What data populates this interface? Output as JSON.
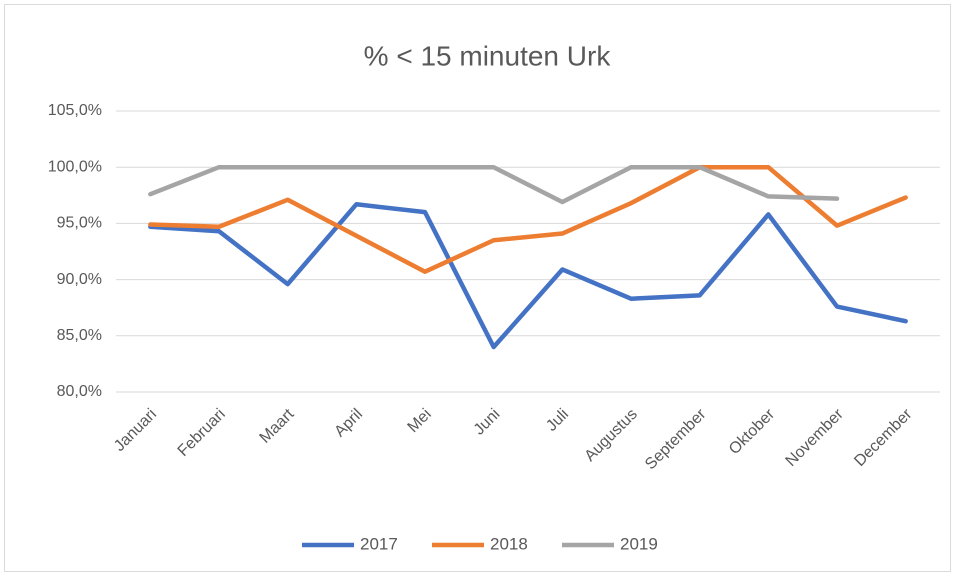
{
  "chart_data": {
    "type": "line",
    "title": "% < 15 minuten Urk",
    "categories": [
      "Januari",
      "Februari",
      "Maart",
      "April",
      "Mei",
      "Juni",
      "Juli",
      "Augustus",
      "September",
      "Oktober",
      "November",
      "December"
    ],
    "series": [
      {
        "name": "2017",
        "color": "#4472c4",
        "values": [
          94.7,
          94.3,
          89.6,
          96.7,
          96.0,
          84.0,
          90.9,
          88.3,
          88.6,
          95.8,
          87.6,
          86.3
        ]
      },
      {
        "name": "2018",
        "color": "#ed7d31",
        "values": [
          94.9,
          94.7,
          97.1,
          93.9,
          90.7,
          93.5,
          94.1,
          96.8,
          100,
          100,
          94.8,
          97.3
        ]
      },
      {
        "name": "2019",
        "color": "#a5a5a5",
        "values": [
          97.6,
          100,
          100,
          100,
          100,
          100,
          96.9,
          100,
          100,
          97.4,
          97.2,
          null
        ]
      }
    ],
    "ylim": [
      80,
      105
    ],
    "yticks": [
      {
        "value": 80,
        "label": "80,0%"
      },
      {
        "value": 85,
        "label": "85,0%"
      },
      {
        "value": 90,
        "label": "90,0%"
      },
      {
        "value": 95,
        "label": "95,0%"
      },
      {
        "value": 100,
        "label": "100,0%"
      },
      {
        "value": 105,
        "label": "105,0%"
      }
    ],
    "grid": true,
    "legend": "bottom"
  }
}
